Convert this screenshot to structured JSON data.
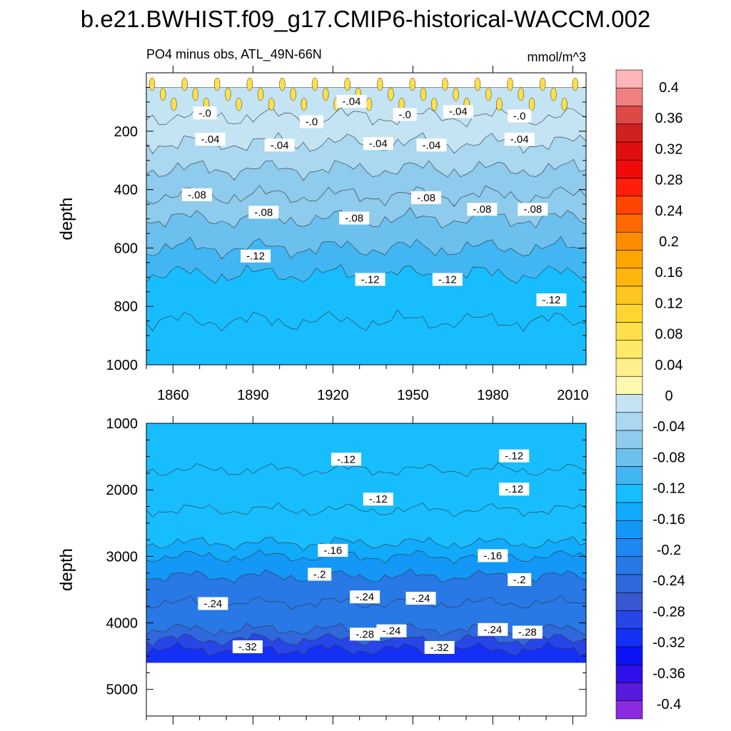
{
  "chart_data": {
    "type": "heatmap",
    "title": "b.e21.BWHIST.f09_g17.CMIP6-historical-WACCM.002",
    "subtitle": "PO4 minus obs, ATL_49N-66N",
    "units": "mmol/m^3",
    "x": {
      "ticks": [
        1860,
        1890,
        1920,
        1950,
        1980,
        2010
      ],
      "range": [
        1850,
        2015
      ]
    },
    "colorbar": {
      "labels": [
        "0.4",
        "0.36",
        "0.32",
        "0.28",
        "0.24",
        "0.2",
        "0.16",
        "0.12",
        "0.08",
        "0.04",
        "0",
        "-0.04",
        "-0.08",
        "-0.12",
        "-0.16",
        "-0.2",
        "-0.24",
        "-0.28",
        "-0.32",
        "-0.36",
        "-0.4"
      ],
      "colors": [
        "#FDB7B9",
        "#F08080",
        "#E04848",
        "#D02020",
        "#E00F0F",
        "#F00A0A",
        "#FF1E0A",
        "#FF4500",
        "#FF6A00",
        "#FF8C00",
        "#FFA500",
        "#FFB510",
        "#FFC520",
        "#FFD630",
        "#FFE04A",
        "#FFE966",
        "#FFF08C",
        "#FFF8B0",
        "#C4E4F4",
        "#A9D8F0",
        "#8ECBEC",
        "#6BC0EE",
        "#42B6F2",
        "#18BDFE",
        "#12ABFB",
        "#1398F7",
        "#1E88F0",
        "#2878E6",
        "#2F68DC",
        "#3858D2",
        "#2845E8",
        "#1430F5",
        "#0A14F5",
        "#2E10E8",
        "#5A1ADC",
        "#8A2BE2"
      ]
    },
    "panels": [
      {
        "name": "upper",
        "ylabel": "depth",
        "y_ticks": [
          200,
          400,
          600,
          800,
          1000
        ],
        "y_range": [
          0,
          1000
        ],
        "levels": [
          {
            "depth": 50,
            "value": -0.02
          },
          {
            "depth": 150,
            "value": 0.02
          },
          {
            "depth": 240,
            "value": -0.02
          },
          {
            "depth": 330,
            "value": -0.04
          },
          {
            "depth": 420,
            "value": -0.06
          },
          {
            "depth": 500,
            "value": -0.08
          },
          {
            "depth": 600,
            "value": -0.1
          },
          {
            "depth": 690,
            "value": -0.12
          },
          {
            "depth": 850,
            "value": -0.13
          },
          {
            "depth": 1000,
            "value": -0.13
          }
        ],
        "contour_labels": [
          {
            "text": "-.0",
            "year": 1872,
            "depth": 140
          },
          {
            "text": "-.0",
            "year": 1912,
            "depth": 170
          },
          {
            "text": "-.04",
            "year": 1927,
            "depth": 100
          },
          {
            "text": "-.0",
            "year": 1947,
            "depth": 145
          },
          {
            "text": "-.04",
            "year": 1967,
            "depth": 135
          },
          {
            "text": "-.0",
            "year": 1990,
            "depth": 150
          },
          {
            "text": "-.04",
            "year": 1874,
            "depth": 230
          },
          {
            "text": "-.04",
            "year": 1900,
            "depth": 250
          },
          {
            "text": "-.04",
            "year": 1937,
            "depth": 245
          },
          {
            "text": "-.04",
            "year": 1957,
            "depth": 250
          },
          {
            "text": "-.04",
            "year": 1990,
            "depth": 230
          },
          {
            "text": "-.08",
            "year": 1869,
            "depth": 420
          },
          {
            "text": "-.08",
            "year": 1894,
            "depth": 480
          },
          {
            "text": "-.08",
            "year": 1928,
            "depth": 500
          },
          {
            "text": "-.08",
            "year": 1955,
            "depth": 430
          },
          {
            "text": "-.08",
            "year": 1976,
            "depth": 470
          },
          {
            "text": "-.08",
            "year": 1995,
            "depth": 470
          },
          {
            "text": "-.12",
            "year": 1891,
            "depth": 630
          },
          {
            "text": "-.12",
            "year": 1934,
            "depth": 710
          },
          {
            "text": "-.12",
            "year": 1963,
            "depth": 710
          },
          {
            "text": "-.12",
            "year": 2002,
            "depth": 780
          }
        ]
      },
      {
        "name": "lower",
        "ylabel": "depth",
        "y_ticks": [
          1000,
          2000,
          3000,
          4000,
          5000
        ],
        "y_range": [
          1000,
          5400
        ],
        "data_bottom": 4600,
        "levels": [
          {
            "depth": 1000,
            "value": -0.13
          },
          {
            "depth": 1700,
            "value": -0.12
          },
          {
            "depth": 2300,
            "value": -0.125
          },
          {
            "depth": 2800,
            "value": -0.14
          },
          {
            "depth": 3000,
            "value": -0.16
          },
          {
            "depth": 3300,
            "value": -0.2
          },
          {
            "depth": 3700,
            "value": -0.24
          },
          {
            "depth": 4100,
            "value": -0.24
          },
          {
            "depth": 4250,
            "value": -0.28
          },
          {
            "depth": 4400,
            "value": -0.32
          },
          {
            "depth": 4600,
            "value": -0.34
          }
        ],
        "contour_labels": [
          {
            "text": "-.12",
            "year": 1925,
            "depth": 1550
          },
          {
            "text": "-.12",
            "year": 1937,
            "depth": 2150
          },
          {
            "text": "-.12",
            "year": 1988,
            "depth": 1500
          },
          {
            "text": "-.12",
            "year": 1988,
            "depth": 2000
          },
          {
            "text": "-.16",
            "year": 1920,
            "depth": 2920
          },
          {
            "text": "-.16",
            "year": 1980,
            "depth": 3000
          },
          {
            "text": "-.2",
            "year": 1915,
            "depth": 3280
          },
          {
            "text": "-.2",
            "year": 1990,
            "depth": 3360
          },
          {
            "text": "-.24",
            "year": 1875,
            "depth": 3720
          },
          {
            "text": "-.24",
            "year": 1932,
            "depth": 3620
          },
          {
            "text": "-.24",
            "year": 1953,
            "depth": 3640
          },
          {
            "text": "-.24",
            "year": 1980,
            "depth": 4110
          },
          {
            "text": "-.24",
            "year": 1942,
            "depth": 4130
          },
          {
            "text": "-.28",
            "year": 1932,
            "depth": 4180
          },
          {
            "text": "-.28",
            "year": 1993,
            "depth": 4150
          },
          {
            "text": "-.32",
            "year": 1888,
            "depth": 4370
          },
          {
            "text": "-.32",
            "year": 1960,
            "depth": 4380
          }
        ]
      }
    ]
  }
}
